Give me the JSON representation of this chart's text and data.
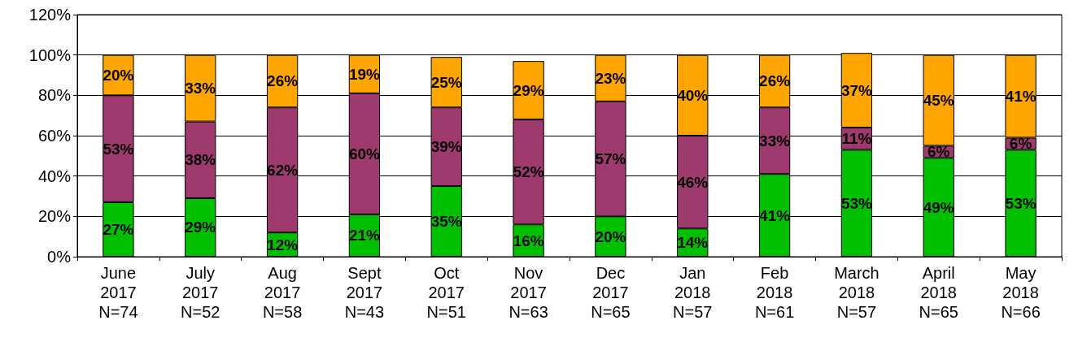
{
  "chart_data": {
    "type": "bar",
    "stacked": true,
    "grid": "y",
    "categories": [
      "June\n2017\nN=74",
      "July\n2017\nN=52",
      "Aug\n2017\nN=58",
      "Sept\n2017\nN=43",
      "Oct\n2017\nN=51",
      "Nov\n2017\nN=63",
      "Dec\n2017\nN=65",
      "Jan\n2018\nN=57",
      "Feb\n2018\nN=61",
      "March\n2018\nN=57",
      "April\n2018\nN=65",
      "May\n2018\nN=66"
    ],
    "ylim": [
      0,
      120
    ],
    "yticks": [
      {
        "value": 0,
        "label": "0%"
      },
      {
        "value": 20,
        "label": "20%"
      },
      {
        "value": 40,
        "label": "40%"
      },
      {
        "value": 60,
        "label": "60%"
      },
      {
        "value": 80,
        "label": "80%"
      },
      {
        "value": 100,
        "label": "100%"
      },
      {
        "value": 120,
        "label": "120%"
      }
    ],
    "series": [
      {
        "color": "#00c000",
        "values": [
          27,
          29,
          12,
          21,
          35,
          16,
          20,
          14,
          41,
          53,
          49,
          53
        ],
        "value_labels": [
          "27%",
          "29%",
          "12%",
          "21%",
          "35%",
          "16%",
          "20%",
          "14%",
          "41%",
          "53%",
          "49%",
          "53%"
        ]
      },
      {
        "color": "#9e3a6e",
        "values": [
          53,
          38,
          62,
          60,
          39,
          52,
          57,
          46,
          33,
          11,
          6,
          6
        ],
        "value_labels": [
          "53%",
          "38%",
          "62%",
          "60%",
          "39%",
          "52%",
          "57%",
          "46%",
          "33%",
          "11%",
          "6%",
          "6%"
        ]
      },
      {
        "color": "#ffa500",
        "values": [
          20,
          33,
          26,
          19,
          25,
          29,
          23,
          40,
          26,
          37,
          45,
          41
        ],
        "value_labels": [
          "20%",
          "33%",
          "26%",
          "19%",
          "25%",
          "29%",
          "23%",
          "40%",
          "26%",
          "37%",
          "45%",
          "41%"
        ]
      }
    ]
  }
}
